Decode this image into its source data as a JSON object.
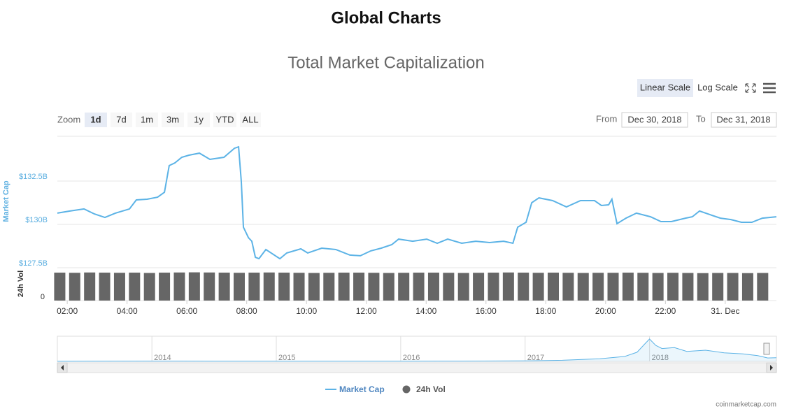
{
  "page_title": "Global Charts",
  "controls": {
    "scale_buttons": [
      "Linear Scale",
      "Log Scale"
    ],
    "active_scale": 0,
    "zoom_label": "Zoom",
    "zoom_buttons": [
      "1d",
      "7d",
      "1m",
      "3m",
      "1y",
      "YTD",
      "ALL"
    ],
    "active_zoom": 0,
    "from_label": "From",
    "from": "Dec 30, 2018",
    "to_label": "To",
    "to": "Dec 31, 2018"
  },
  "chart_data": {
    "type": "line",
    "title": "Total Market Capitalization",
    "y_label": "Market Cap",
    "y2_label": "24h Vol",
    "xlim": [
      1.67,
      25.71
    ],
    "xticks": [
      {
        "value": 2,
        "label": "02:00"
      },
      {
        "value": 4,
        "label": "04:00"
      },
      {
        "value": 6,
        "label": "06:00"
      },
      {
        "value": 8,
        "label": "08:00"
      },
      {
        "value": 10,
        "label": "10:00"
      },
      {
        "value": 12,
        "label": "12:00"
      },
      {
        "value": 14,
        "label": "14:00"
      },
      {
        "value": 16,
        "label": "16:00"
      },
      {
        "value": 18,
        "label": "18:00"
      },
      {
        "value": 20,
        "label": "20:00"
      },
      {
        "value": 22,
        "label": "22:00"
      },
      {
        "value": 24,
        "label": "31. Dec"
      }
    ],
    "ylim": [
      127.5,
      135
    ],
    "yticks": [
      {
        "value": 127.5,
        "label": "$127.5B"
      },
      {
        "value": 130,
        "label": "$130B"
      },
      {
        "value": 132.5,
        "label": "$132.5B"
      }
    ],
    "y2lim": [
      0,
      18.5
    ],
    "y2ticks": [
      0
    ],
    "grid": true,
    "series": [
      {
        "name": "Market Cap",
        "color": "#5cb3e6",
        "x": [
          1.67,
          2.09,
          2.56,
          2.91,
          3.26,
          3.61,
          4.08,
          4.31,
          4.67,
          5.02,
          5.25,
          5.41,
          5.6,
          5.83,
          6.07,
          6.42,
          6.77,
          7.24,
          7.59,
          7.73,
          7.82,
          7.89,
          8.06,
          8.17,
          8.29,
          8.41,
          8.64,
          9.11,
          9.34,
          9.81,
          10.04,
          10.51,
          10.98,
          11.45,
          11.8,
          12.15,
          12.5,
          12.85,
          13.08,
          13.55,
          14.02,
          14.37,
          14.72,
          15.19,
          15.66,
          16.12,
          16.59,
          16.9,
          17.06,
          17.34,
          17.53,
          17.77,
          18.23,
          18.69,
          19.16,
          19.63,
          19.86,
          20.1,
          20.21,
          20.38,
          20.68,
          21.03,
          21.5,
          21.85,
          22.2,
          22.67,
          22.9,
          23.14,
          23.49,
          23.84,
          24.19,
          24.54,
          24.89,
          25.24,
          25.71
        ],
        "values": [
          130.65,
          130.77,
          130.89,
          130.6,
          130.4,
          130.65,
          130.89,
          131.41,
          131.45,
          131.57,
          131.85,
          133.39,
          133.55,
          133.87,
          133.99,
          134.11,
          133.75,
          133.87,
          134.39,
          134.47,
          132.46,
          129.84,
          129.23,
          129.03,
          128.1,
          128.02,
          128.55,
          128.02,
          128.35,
          128.59,
          128.35,
          128.63,
          128.55,
          128.23,
          128.19,
          128.47,
          128.63,
          128.83,
          129.15,
          129.03,
          129.15,
          128.91,
          129.15,
          128.91,
          129.03,
          128.95,
          129.03,
          128.91,
          129.84,
          130.12,
          131.25,
          131.53,
          131.37,
          131.01,
          131.37,
          131.37,
          131.09,
          131.13,
          131.45,
          130.04,
          130.36,
          130.65,
          130.44,
          130.16,
          130.16,
          130.36,
          130.44,
          130.77,
          130.56,
          130.36,
          130.28,
          130.12,
          130.12,
          130.36,
          130.44
        ]
      },
      {
        "name": "24h Vol",
        "type": "bar",
        "axis": "y2",
        "color": "#666666",
        "x": [
          1.75,
          2.25,
          2.75,
          3.25,
          3.75,
          4.25,
          4.75,
          5.25,
          5.75,
          6.25,
          6.75,
          7.25,
          7.75,
          8.25,
          8.75,
          9.25,
          9.75,
          10.25,
          10.75,
          11.25,
          11.75,
          12.25,
          12.75,
          13.25,
          13.75,
          14.25,
          14.75,
          15.25,
          15.75,
          16.25,
          16.75,
          17.25,
          17.75,
          18.25,
          18.75,
          19.25,
          19.75,
          20.25,
          20.75,
          21.25,
          21.75,
          22.25,
          22.75,
          23.25,
          23.75,
          24.25,
          24.75,
          25.25
        ],
        "values": [
          17.6,
          17.5,
          17.7,
          17.6,
          17.5,
          17.6,
          17.4,
          17.6,
          17.7,
          17.8,
          17.7,
          17.6,
          17.5,
          17.6,
          17.7,
          17.6,
          17.5,
          17.4,
          17.5,
          17.6,
          17.6,
          17.5,
          17.4,
          17.5,
          17.6,
          17.6,
          17.5,
          17.4,
          17.5,
          17.6,
          17.7,
          17.6,
          17.5,
          17.6,
          17.5,
          17.4,
          17.5,
          17.5,
          17.6,
          17.5,
          17.4,
          17.5,
          17.4,
          17.3,
          17.4,
          17.4,
          17.3,
          17.4
        ]
      }
    ],
    "navigator": {
      "xlim": [
        2013.24,
        2019.02
      ],
      "xticks": [
        2014,
        2015,
        2016,
        2017,
        2018
      ],
      "ylim": [
        0,
        830
      ],
      "x": [
        2013.24,
        2013.5,
        2014,
        2014.5,
        2015,
        2015.5,
        2016,
        2016.5,
        2017,
        2017.3,
        2017.6,
        2017.8,
        2017.9,
        2017.96,
        2018.0,
        2018.05,
        2018.1,
        2018.2,
        2018.3,
        2018.45,
        2018.6,
        2018.75,
        2018.87,
        2018.95,
        2019.02
      ],
      "values": [
        1.5,
        8,
        10,
        6,
        4,
        5,
        7,
        10,
        18,
        40,
        90,
        170,
        320,
        600,
        780,
        560,
        450,
        480,
        350,
        390,
        300,
        260,
        200,
        120,
        130
      ]
    },
    "credit": "coinmarketcap.com"
  }
}
